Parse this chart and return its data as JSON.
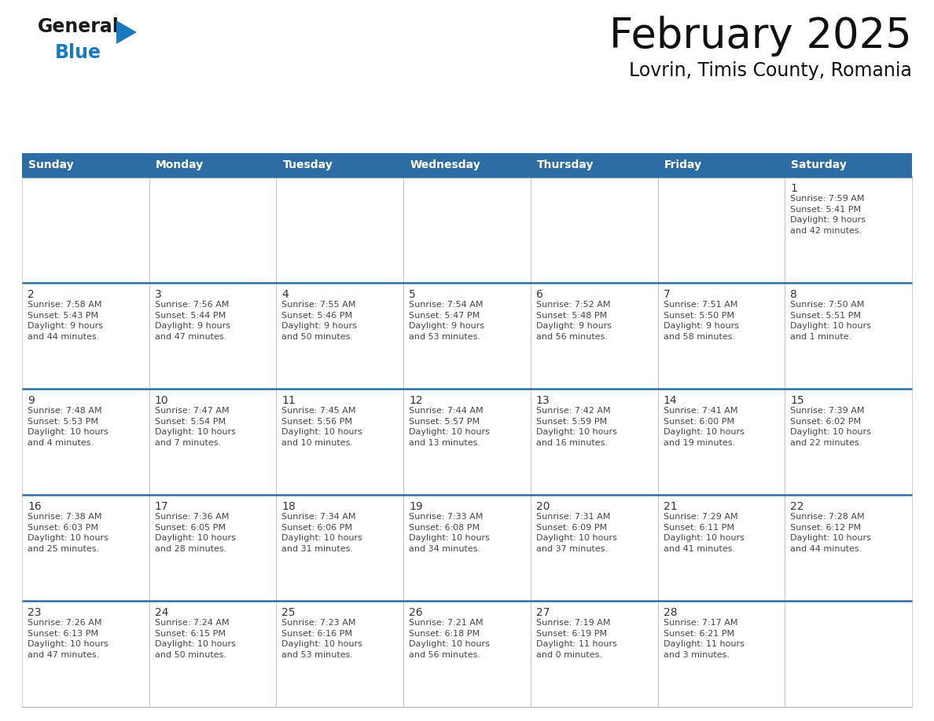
{
  "title": "February 2025",
  "subtitle": "Lovrin, Timis County, Romania",
  "header_color": "#2E6DA4",
  "header_text_color": "#FFFFFF",
  "cell_bg_white": "#FFFFFF",
  "cell_bg_gray": "#F2F2F2",
  "border_color": "#2E6DA4",
  "cell_border_color": "#AAAAAA",
  "days_of_week": [
    "Sunday",
    "Monday",
    "Tuesday",
    "Wednesday",
    "Thursday",
    "Friday",
    "Saturday"
  ],
  "calendar_data": [
    [
      null,
      null,
      null,
      null,
      null,
      null,
      {
        "day": "1",
        "sunrise": "7:59 AM",
        "sunset": "5:41 PM",
        "daylight": "9 hours\nand 42 minutes."
      }
    ],
    [
      {
        "day": "2",
        "sunrise": "7:58 AM",
        "sunset": "5:43 PM",
        "daylight": "9 hours\nand 44 minutes."
      },
      {
        "day": "3",
        "sunrise": "7:56 AM",
        "sunset": "5:44 PM",
        "daylight": "9 hours\nand 47 minutes."
      },
      {
        "day": "4",
        "sunrise": "7:55 AM",
        "sunset": "5:46 PM",
        "daylight": "9 hours\nand 50 minutes."
      },
      {
        "day": "5",
        "sunrise": "7:54 AM",
        "sunset": "5:47 PM",
        "daylight": "9 hours\nand 53 minutes."
      },
      {
        "day": "6",
        "sunrise": "7:52 AM",
        "sunset": "5:48 PM",
        "daylight": "9 hours\nand 56 minutes."
      },
      {
        "day": "7",
        "sunrise": "7:51 AM",
        "sunset": "5:50 PM",
        "daylight": "9 hours\nand 58 minutes."
      },
      {
        "day": "8",
        "sunrise": "7:50 AM",
        "sunset": "5:51 PM",
        "daylight": "10 hours\nand 1 minute."
      }
    ],
    [
      {
        "day": "9",
        "sunrise": "7:48 AM",
        "sunset": "5:53 PM",
        "daylight": "10 hours\nand 4 minutes."
      },
      {
        "day": "10",
        "sunrise": "7:47 AM",
        "sunset": "5:54 PM",
        "daylight": "10 hours\nand 7 minutes."
      },
      {
        "day": "11",
        "sunrise": "7:45 AM",
        "sunset": "5:56 PM",
        "daylight": "10 hours\nand 10 minutes."
      },
      {
        "day": "12",
        "sunrise": "7:44 AM",
        "sunset": "5:57 PM",
        "daylight": "10 hours\nand 13 minutes."
      },
      {
        "day": "13",
        "sunrise": "7:42 AM",
        "sunset": "5:59 PM",
        "daylight": "10 hours\nand 16 minutes."
      },
      {
        "day": "14",
        "sunrise": "7:41 AM",
        "sunset": "6:00 PM",
        "daylight": "10 hours\nand 19 minutes."
      },
      {
        "day": "15",
        "sunrise": "7:39 AM",
        "sunset": "6:02 PM",
        "daylight": "10 hours\nand 22 minutes."
      }
    ],
    [
      {
        "day": "16",
        "sunrise": "7:38 AM",
        "sunset": "6:03 PM",
        "daylight": "10 hours\nand 25 minutes."
      },
      {
        "day": "17",
        "sunrise": "7:36 AM",
        "sunset": "6:05 PM",
        "daylight": "10 hours\nand 28 minutes."
      },
      {
        "day": "18",
        "sunrise": "7:34 AM",
        "sunset": "6:06 PM",
        "daylight": "10 hours\nand 31 minutes."
      },
      {
        "day": "19",
        "sunrise": "7:33 AM",
        "sunset": "6:08 PM",
        "daylight": "10 hours\nand 34 minutes."
      },
      {
        "day": "20",
        "sunrise": "7:31 AM",
        "sunset": "6:09 PM",
        "daylight": "10 hours\nand 37 minutes."
      },
      {
        "day": "21",
        "sunrise": "7:29 AM",
        "sunset": "6:11 PM",
        "daylight": "10 hours\nand 41 minutes."
      },
      {
        "day": "22",
        "sunrise": "7:28 AM",
        "sunset": "6:12 PM",
        "daylight": "10 hours\nand 44 minutes."
      }
    ],
    [
      {
        "day": "23",
        "sunrise": "7:26 AM",
        "sunset": "6:13 PM",
        "daylight": "10 hours\nand 47 minutes."
      },
      {
        "day": "24",
        "sunrise": "7:24 AM",
        "sunset": "6:15 PM",
        "daylight": "10 hours\nand 50 minutes."
      },
      {
        "day": "25",
        "sunrise": "7:23 AM",
        "sunset": "6:16 PM",
        "daylight": "10 hours\nand 53 minutes."
      },
      {
        "day": "26",
        "sunrise": "7:21 AM",
        "sunset": "6:18 PM",
        "daylight": "10 hours\nand 56 minutes."
      },
      {
        "day": "27",
        "sunrise": "7:19 AM",
        "sunset": "6:19 PM",
        "daylight": "11 hours\nand 0 minutes."
      },
      {
        "day": "28",
        "sunrise": "7:17 AM",
        "sunset": "6:21 PM",
        "daylight": "11 hours\nand 3 minutes."
      },
      null
    ]
  ],
  "logo_text_general": "General",
  "logo_text_blue": "Blue",
  "logo_color_general": "#1a1a1a",
  "logo_color_blue": "#1a7abf",
  "logo_triangle_color": "#1a7abf"
}
